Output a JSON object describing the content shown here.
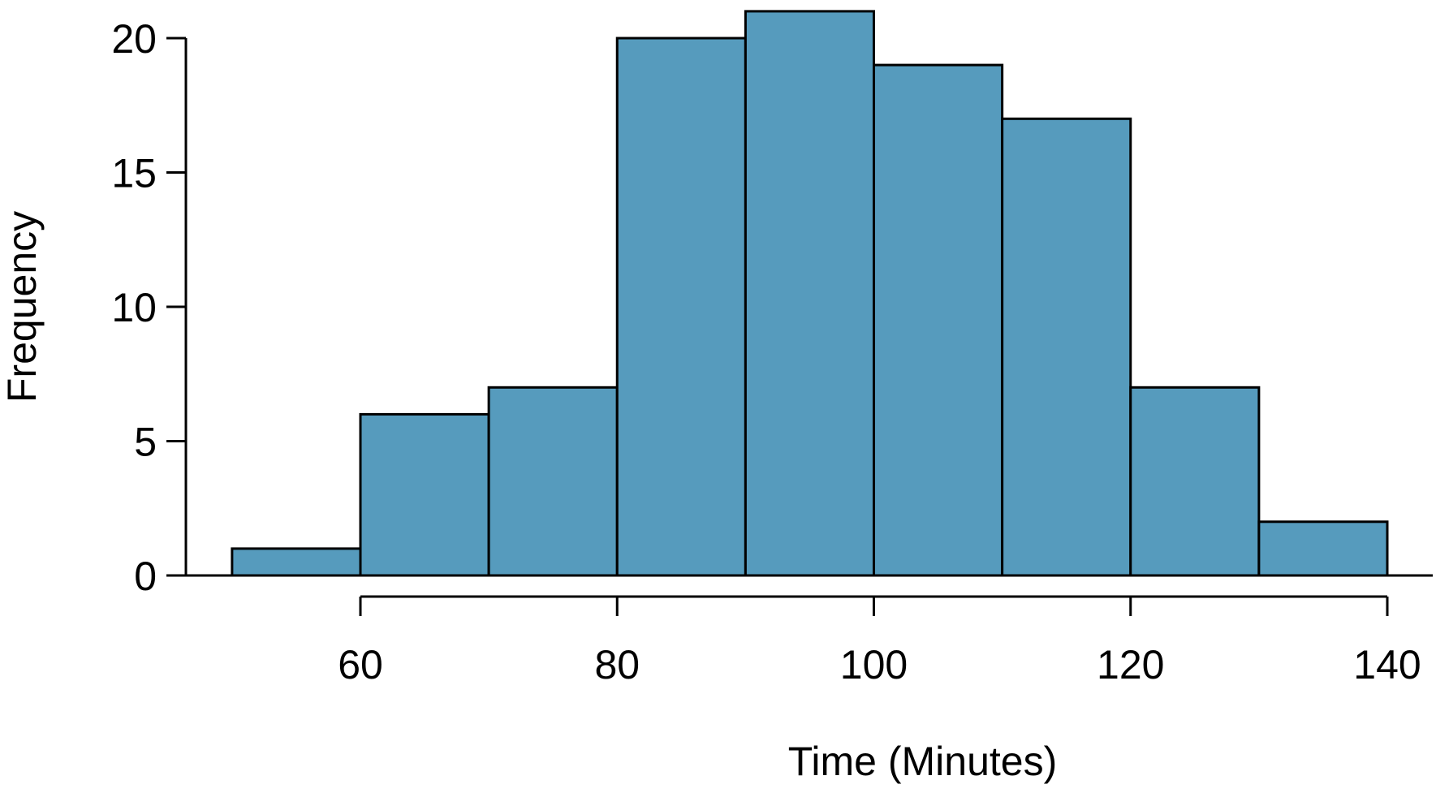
{
  "chart_data": {
    "type": "bar",
    "subtype": "histogram",
    "xlabel": "Time (Minutes)",
    "ylabel": "Frequency",
    "bins": [
      {
        "start": 50,
        "end": 60,
        "count": 1
      },
      {
        "start": 60,
        "end": 70,
        "count": 6
      },
      {
        "start": 70,
        "end": 80,
        "count": 7
      },
      {
        "start": 80,
        "end": 90,
        "count": 20
      },
      {
        "start": 90,
        "end": 100,
        "count": 21
      },
      {
        "start": 100,
        "end": 110,
        "count": 19
      },
      {
        "start": 110,
        "end": 120,
        "count": 17
      },
      {
        "start": 120,
        "end": 130,
        "count": 7
      },
      {
        "start": 130,
        "end": 140,
        "count": 2
      }
    ],
    "xticks": [
      60,
      80,
      100,
      120,
      140
    ],
    "yticks": [
      0,
      5,
      10,
      15,
      20
    ],
    "xlim": [
      60,
      140
    ],
    "ylim": [
      0,
      20
    ],
    "grid": false,
    "legend": "none",
    "bar_color": "#569bbd",
    "edge_color": "#000000"
  }
}
